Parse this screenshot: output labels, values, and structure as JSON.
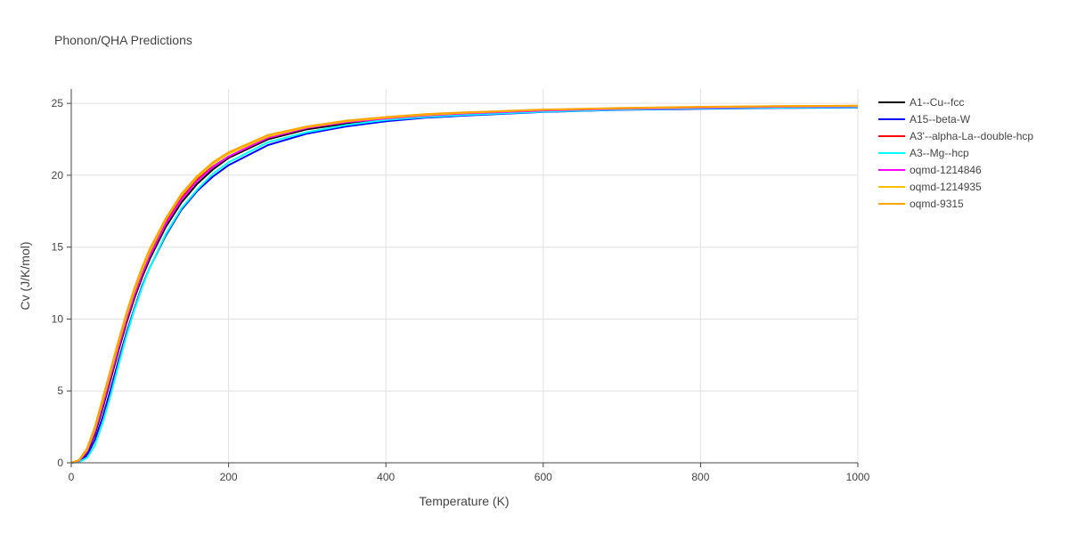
{
  "chart_data": {
    "type": "line",
    "title": "Phonon/QHA Predictions",
    "xlabel": "Temperature (K)",
    "ylabel": "Cv (J/K/mol)",
    "xlim": [
      0,
      1000
    ],
    "ylim": [
      0,
      26
    ],
    "x_ticks": [
      0,
      200,
      400,
      600,
      800,
      1000
    ],
    "y_ticks": [
      0,
      5,
      10,
      15,
      20,
      25
    ],
    "grid": true,
    "legend_position": "right",
    "x": [
      0,
      10,
      20,
      30,
      40,
      50,
      60,
      70,
      80,
      90,
      100,
      120,
      140,
      160,
      180,
      200,
      250,
      300,
      350,
      400,
      450,
      500,
      600,
      700,
      800,
      900,
      1000
    ],
    "series": [
      {
        "name": "A1--Cu--fcc",
        "color": "#000000",
        "values": [
          0,
          0.12,
          0.7,
          2.0,
          3.8,
          5.8,
          7.8,
          9.7,
          11.4,
          12.9,
          14.2,
          16.4,
          18.1,
          19.4,
          20.4,
          21.2,
          22.5,
          23.2,
          23.6,
          23.9,
          24.1,
          24.25,
          24.45,
          24.6,
          24.7,
          24.75,
          24.78
        ]
      },
      {
        "name": "A15--beta-W",
        "color": "#0000ff",
        "values": [
          0,
          0.08,
          0.5,
          1.6,
          3.2,
          5.1,
          7.1,
          9.0,
          10.7,
          12.3,
          13.6,
          15.8,
          17.6,
          18.9,
          19.9,
          20.7,
          22.1,
          22.9,
          23.4,
          23.75,
          24.0,
          24.15,
          24.4,
          24.55,
          24.62,
          24.68,
          24.72
        ]
      },
      {
        "name": "A3'--alpha-La--double-hcp",
        "color": "#ff0000",
        "values": [
          0,
          0.15,
          0.8,
          2.2,
          4.1,
          6.1,
          8.1,
          10.0,
          11.7,
          13.2,
          14.5,
          16.7,
          18.4,
          19.7,
          20.6,
          21.3,
          22.6,
          23.3,
          23.7,
          23.95,
          24.15,
          24.3,
          24.5,
          24.62,
          24.7,
          24.76,
          24.8
        ]
      },
      {
        "name": "A3--Mg--hcp",
        "color": "#00ffff",
        "values": [
          0,
          0.05,
          0.35,
          1.2,
          2.8,
          4.7,
          6.8,
          8.8,
          10.6,
          12.2,
          13.6,
          15.9,
          17.7,
          19.0,
          20.1,
          20.9,
          22.3,
          23.0,
          23.5,
          23.85,
          24.05,
          24.2,
          24.42,
          24.57,
          24.65,
          24.7,
          24.74
        ]
      },
      {
        "name": "oqmd-1214846",
        "color": "#ff00ff",
        "values": [
          0,
          0.14,
          0.78,
          2.15,
          4.0,
          6.0,
          8.0,
          9.9,
          11.6,
          13.1,
          14.4,
          16.6,
          18.3,
          19.6,
          20.55,
          21.3,
          22.6,
          23.3,
          23.7,
          23.95,
          24.15,
          24.3,
          24.5,
          24.62,
          24.7,
          24.76,
          24.8
        ]
      },
      {
        "name": "oqmd-1214935",
        "color": "#ffbf00",
        "values": [
          0,
          0.18,
          0.9,
          2.35,
          4.3,
          6.3,
          8.3,
          10.2,
          11.9,
          13.4,
          14.7,
          16.9,
          18.6,
          19.85,
          20.8,
          21.5,
          22.7,
          23.35,
          23.75,
          24.0,
          24.2,
          24.35,
          24.55,
          24.66,
          24.74,
          24.8,
          24.83
        ]
      },
      {
        "name": "oqmd-9315",
        "color": "#ffa500",
        "values": [
          0,
          0.2,
          1.0,
          2.5,
          4.5,
          6.5,
          8.5,
          10.4,
          12.1,
          13.6,
          14.9,
          17.0,
          18.7,
          19.95,
          20.9,
          21.6,
          22.8,
          23.4,
          23.8,
          24.05,
          24.25,
          24.38,
          24.57,
          24.68,
          24.76,
          24.81,
          24.84
        ]
      }
    ]
  }
}
